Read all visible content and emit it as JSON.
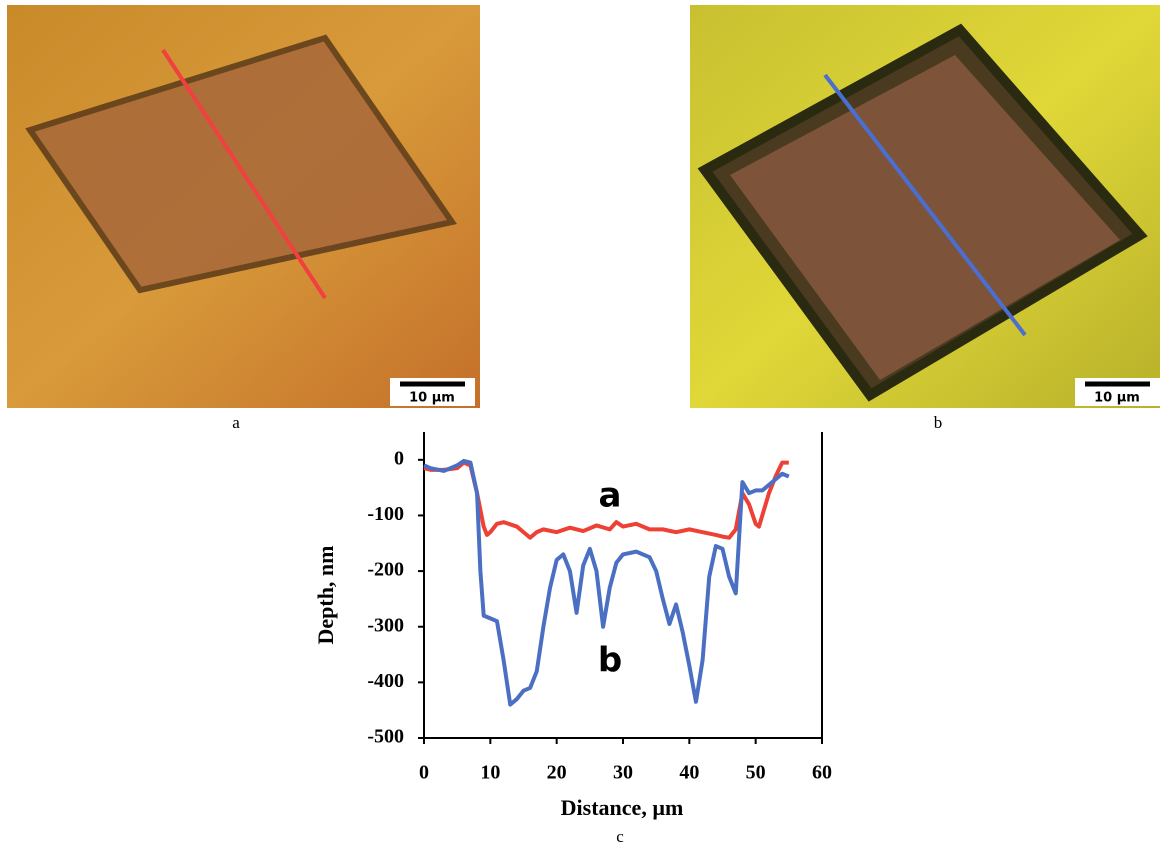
{
  "panels": [
    {
      "label": "a",
      "scale_bar": "10 µm"
    },
    {
      "label": "b",
      "scale_bar": "10 µm"
    }
  ],
  "chart_data": {
    "type": "line",
    "label": "c",
    "x_label": "Distance, µm",
    "y_label": "Depth, nm",
    "xlim": [
      0,
      60
    ],
    "xticks": [
      0,
      10,
      20,
      30,
      40,
      50,
      60
    ],
    "ylim": [
      -500,
      50
    ],
    "yticks": [
      -500,
      -400,
      -300,
      -200,
      -100,
      0
    ],
    "series": [
      {
        "name": "a",
        "color": "#ee4035",
        "x": [
          0,
          1,
          3,
          5,
          6,
          7,
          8,
          9,
          9.5,
          10,
          11,
          12,
          14,
          15,
          16,
          17,
          18,
          20,
          22,
          24,
          26,
          28,
          29,
          30,
          32,
          34,
          36,
          38,
          40,
          42,
          44,
          45,
          46,
          47,
          48,
          49,
          50,
          50.5,
          51,
          52,
          53,
          54,
          55
        ],
        "values": [
          -15,
          -18,
          -18,
          -15,
          -5,
          -10,
          -60,
          -120,
          -135,
          -130,
          -115,
          -112,
          -120,
          -130,
          -140,
          -130,
          -125,
          -130,
          -122,
          -128,
          -118,
          -125,
          -112,
          -120,
          -115,
          -125,
          -125,
          -130,
          -125,
          -130,
          -135,
          -138,
          -140,
          -125,
          -60,
          -80,
          -115,
          -120,
          -100,
          -60,
          -30,
          -5,
          -5
        ]
      },
      {
        "name": "b",
        "color": "#4a6fc3",
        "x": [
          0,
          1,
          3,
          5,
          6,
          7,
          8,
          8.5,
          9,
          10,
          11,
          12,
          13,
          14,
          15,
          16,
          17,
          18,
          19,
          20,
          21,
          22,
          23,
          24,
          25,
          26,
          27,
          28,
          29,
          30,
          32,
          34,
          35,
          36,
          37,
          38,
          39,
          40,
          41,
          42,
          43,
          44,
          45,
          46,
          47,
          48,
          49,
          50,
          51,
          52,
          53,
          54,
          55
        ],
        "values": [
          -10,
          -15,
          -20,
          -10,
          -2,
          -5,
          -60,
          -200,
          -280,
          -285,
          -290,
          -360,
          -440,
          -430,
          -415,
          -410,
          -380,
          -300,
          -230,
          -180,
          -170,
          -200,
          -275,
          -190,
          -160,
          -200,
          -300,
          -230,
          -185,
          -170,
          -165,
          -175,
          -200,
          -250,
          -295,
          -260,
          -310,
          -370,
          -435,
          -360,
          -210,
          -155,
          -160,
          -210,
          -240,
          -40,
          -60,
          -55,
          -55,
          -45,
          -35,
          -25,
          -30
        ]
      }
    ]
  }
}
